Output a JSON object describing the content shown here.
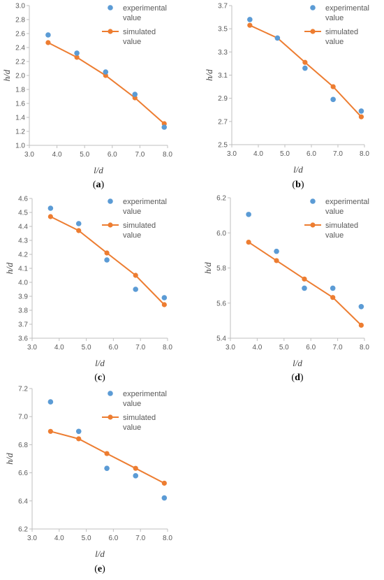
{
  "colors": {
    "experimental": "#5B9BD5",
    "simulated": "#ED7D31",
    "axis": "#BFBFBF"
  },
  "chart_data": [
    {
      "type": "scatter",
      "panel": "a",
      "xlabel": "l/d",
      "ylabel": "h/d",
      "xlim": [
        3.0,
        8.0
      ],
      "ylim": [
        1.0,
        3.0
      ],
      "xticks": [
        "3.0",
        "4.0",
        "5.0",
        "6.0",
        "7.0",
        "8.0"
      ],
      "yticks": [
        "1.0",
        "1.2",
        "1.4",
        "1.6",
        "1.8",
        "2.0",
        "2.2",
        "2.4",
        "2.6",
        "2.8",
        "3.0"
      ],
      "legend": {
        "experimental": "experimental\nvalue",
        "simulated": "simulated\nvalue"
      },
      "series": [
        {
          "name": "experimental value",
          "kind": "scatter",
          "x": [
            3.68,
            4.72,
            5.76,
            6.82,
            7.88
          ],
          "y": [
            2.58,
            2.32,
            2.05,
            1.73,
            1.26
          ]
        },
        {
          "name": "simulated value",
          "kind": "line",
          "x": [
            3.68,
            4.72,
            5.76,
            6.82,
            7.88
          ],
          "y": [
            2.47,
            2.26,
            2.0,
            1.68,
            1.31
          ]
        }
      ]
    },
    {
      "type": "scatter",
      "panel": "b",
      "xlabel": "l/d",
      "ylabel": "h/d",
      "xlim": [
        3.0,
        8.0
      ],
      "ylim": [
        2.5,
        3.7
      ],
      "xticks": [
        "3.0",
        "4.0",
        "5.0",
        "6.0",
        "7.0",
        "8.0"
      ],
      "yticks": [
        "2.5",
        "2.7",
        "2.9",
        "3.1",
        "3.3",
        "3.5",
        "3.7"
      ],
      "legend": {
        "experimental": "experimental\nvalue",
        "simulated": "simulated\nvalue"
      },
      "series": [
        {
          "name": "experimental value",
          "kind": "scatter",
          "x": [
            3.68,
            4.72,
            5.76,
            6.82,
            7.88
          ],
          "y": [
            3.58,
            3.42,
            3.16,
            2.89,
            2.79
          ]
        },
        {
          "name": "simulated value",
          "kind": "line",
          "x": [
            3.68,
            4.72,
            5.76,
            6.82,
            7.88
          ],
          "y": [
            3.53,
            3.42,
            3.21,
            3.0,
            2.74
          ]
        }
      ]
    },
    {
      "type": "scatter",
      "panel": "c",
      "xlabel": "l/d",
      "ylabel": "h/d",
      "xlim": [
        3.0,
        8.0
      ],
      "ylim": [
        3.6,
        4.6
      ],
      "xticks": [
        "3.0",
        "4.0",
        "5.0",
        "6.0",
        "7.0",
        "8.0"
      ],
      "yticks": [
        "3.6",
        "3.7",
        "3.8",
        "3.9",
        "4.0",
        "4.1",
        "4.2",
        "4.3",
        "4.4",
        "4.5",
        "4.6"
      ],
      "legend": {
        "experimental": "experimental\nvalue",
        "simulated": "simulated\nvalue"
      },
      "series": [
        {
          "name": "experimental value",
          "kind": "scatter",
          "x": [
            3.68,
            4.72,
            5.76,
            6.82,
            7.88
          ],
          "y": [
            4.53,
            4.42,
            4.16,
            3.95,
            3.89
          ]
        },
        {
          "name": "simulated value",
          "kind": "line",
          "x": [
            3.68,
            4.72,
            5.76,
            6.82,
            7.88
          ],
          "y": [
            4.47,
            4.37,
            4.21,
            4.05,
            3.84
          ]
        }
      ]
    },
    {
      "type": "scatter",
      "panel": "d",
      "xlabel": "l/d",
      "ylabel": "h/d",
      "xlim": [
        3.0,
        8.0
      ],
      "ylim": [
        5.4,
        6.2
      ],
      "xticks": [
        "3.0",
        "4.0",
        "5.0",
        "6.0",
        "7.0",
        "8.0"
      ],
      "yticks": [
        "5.4",
        "5.6",
        "5.8",
        "6.0",
        "6.2"
      ],
      "legend": {
        "experimental": "experimental\nvalue",
        "simulated": "simulated\nvalue"
      },
      "series": [
        {
          "name": "experimental value",
          "kind": "scatter",
          "x": [
            3.68,
            4.72,
            5.76,
            6.82,
            7.88
          ],
          "y": [
            6.105,
            5.895,
            5.685,
            5.685,
            5.58
          ]
        },
        {
          "name": "simulated value",
          "kind": "line",
          "x": [
            3.68,
            4.72,
            5.76,
            6.82,
            7.88
          ],
          "y": [
            5.947,
            5.842,
            5.737,
            5.632,
            5.474
          ]
        }
      ]
    },
    {
      "type": "scatter",
      "panel": "e",
      "xlabel": "l/d",
      "ylabel": "h/d",
      "xlim": [
        3.0,
        8.0
      ],
      "ylim": [
        6.2,
        7.2
      ],
      "xticks": [
        "3.0",
        "4.0",
        "5.0",
        "6.0",
        "7.0",
        "8.0"
      ],
      "yticks": [
        "6.2",
        "6.4",
        "6.6",
        "6.8",
        "7.0",
        "7.2"
      ],
      "legend": {
        "experimental": "experimental\nvalue",
        "simulated": "simulated\nvalue"
      },
      "series": [
        {
          "name": "experimental value",
          "kind": "scatter",
          "x": [
            3.68,
            4.72,
            5.76,
            6.82,
            7.88
          ],
          "y": [
            7.105,
            6.895,
            6.632,
            6.579,
            6.421
          ]
        },
        {
          "name": "simulated value",
          "kind": "line",
          "x": [
            3.68,
            4.72,
            5.76,
            6.82,
            7.88
          ],
          "y": [
            6.895,
            6.842,
            6.737,
            6.632,
            6.526
          ]
        }
      ]
    }
  ]
}
